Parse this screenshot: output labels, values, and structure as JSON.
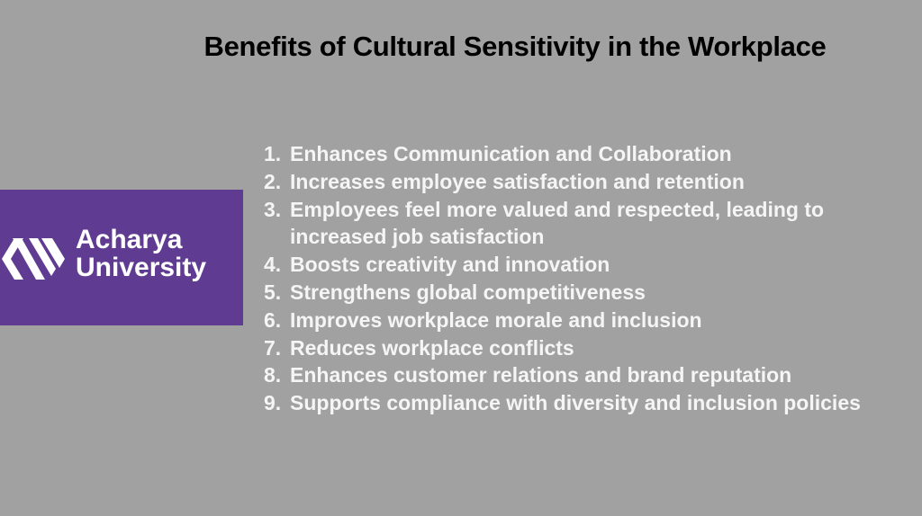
{
  "slide": {
    "title": "Benefits of Cultural Sensitivity in the Workplace",
    "logo": {
      "line1": "Acharya",
      "line2": "University",
      "color": "#5f3b91"
    },
    "items": [
      {
        "num": "1.",
        "text": "Enhances Communication and Collaboration"
      },
      {
        "num": "2.",
        "text": "Increases employee satisfaction and retention"
      },
      {
        "num": "3.",
        "text": "Employees feel more valued and respected, leading to increased job satisfaction"
      },
      {
        "num": "4.",
        "text": "Boosts creativity and innovation"
      },
      {
        "num": "5.",
        "text": "Strengthens global competitiveness"
      },
      {
        "num": "6.",
        "text": "Improves workplace morale and inclusion"
      },
      {
        "num": "7.",
        "text": "Reduces workplace conflicts"
      },
      {
        "num": "8.",
        "text": "Enhances customer relations and brand reputation"
      },
      {
        "num": "9.",
        "text": "Supports compliance with diversity and inclusion policies"
      }
    ]
  }
}
